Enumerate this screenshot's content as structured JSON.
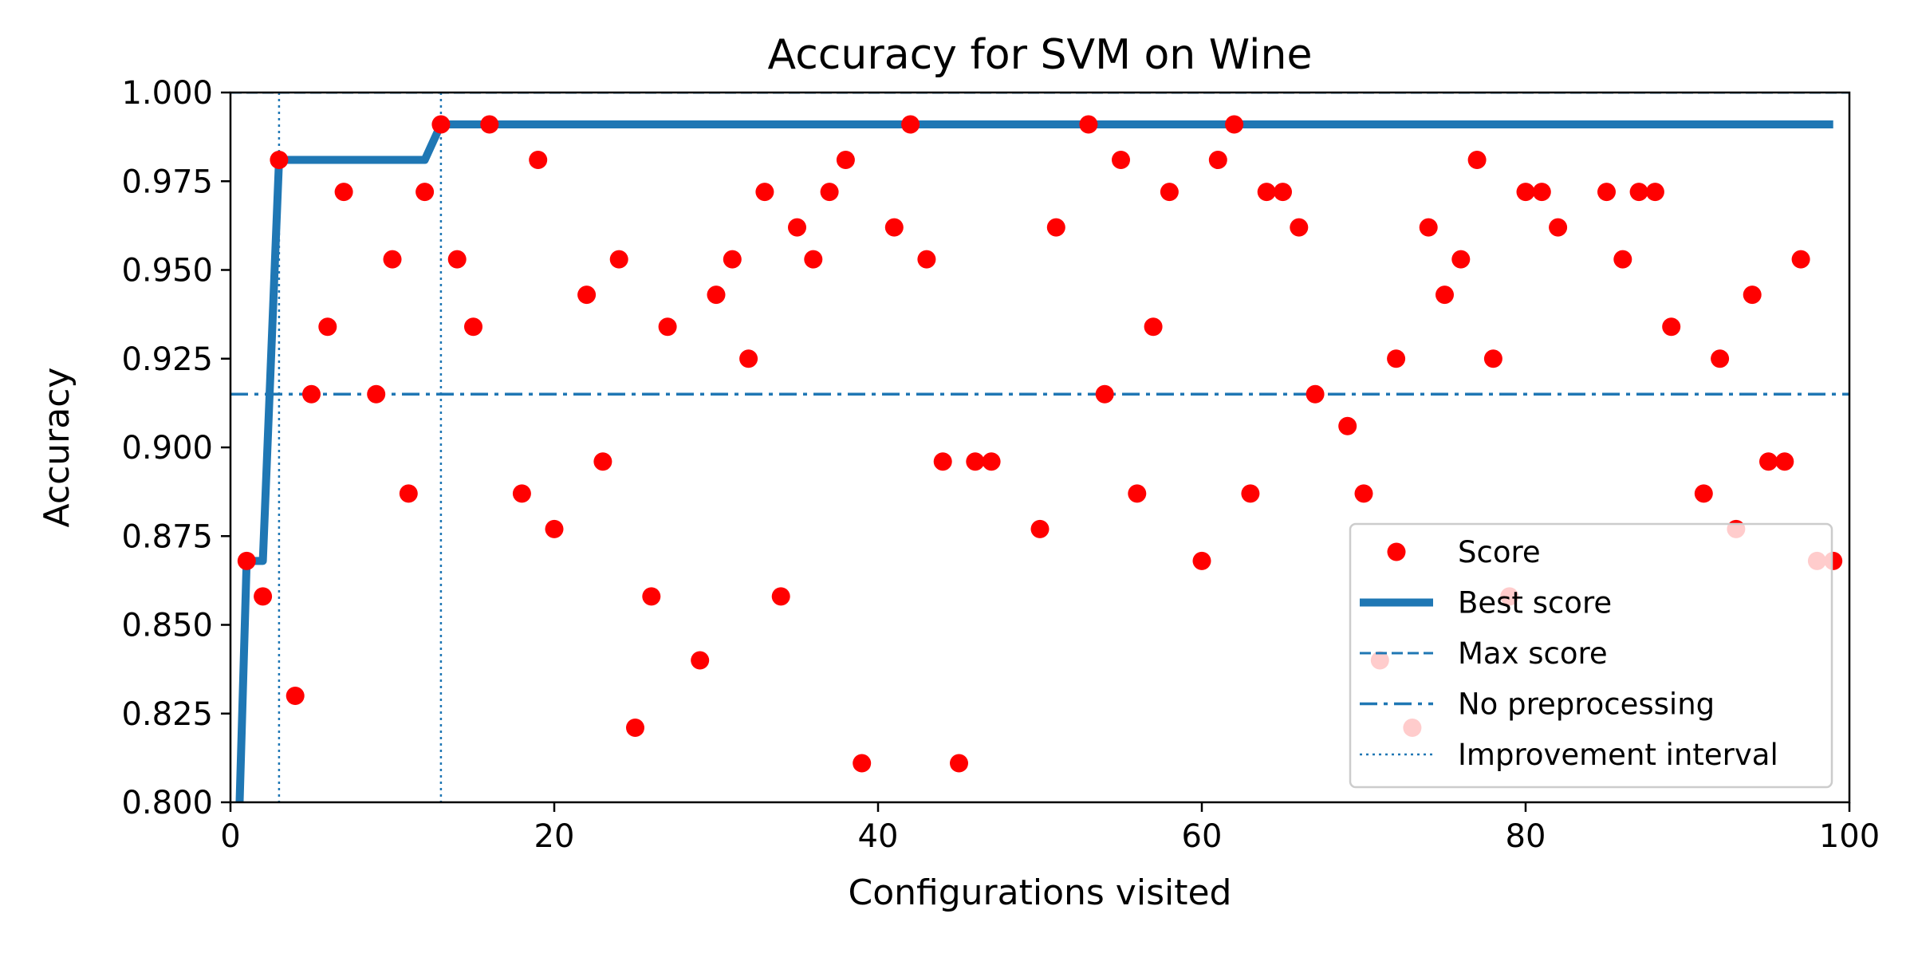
{
  "chart_data": {
    "type": "scatter",
    "title": "Accuracy for SVM on Wine",
    "xlabel": "Configurations visited",
    "ylabel": "Accuracy",
    "xlim": [
      0,
      100
    ],
    "ylim": [
      0.8,
      1.0
    ],
    "x_ticks": [
      0,
      20,
      40,
      60,
      80,
      100
    ],
    "x_tick_labels": [
      "0",
      "20",
      "40",
      "60",
      "80",
      "100"
    ],
    "y_ticks": [
      0.8,
      0.825,
      0.85,
      0.875,
      0.9,
      0.925,
      0.95,
      0.975,
      1.0
    ],
    "y_tick_labels": [
      "0.800",
      "0.825",
      "0.850",
      "0.875",
      "0.900",
      "0.925",
      "0.950",
      "0.975",
      "1.000"
    ],
    "grid": false,
    "legend_position": "lower right",
    "colors": {
      "score": "#ff0000",
      "line": "#1f77b4"
    },
    "score_points": [
      [
        1,
        0.868
      ],
      [
        2,
        0.858
      ],
      [
        3,
        0.981
      ],
      [
        4,
        0.83
      ],
      [
        5,
        0.915
      ],
      [
        6,
        0.934
      ],
      [
        7,
        0.972
      ],
      [
        9,
        0.915
      ],
      [
        10,
        0.953
      ],
      [
        11,
        0.887
      ],
      [
        12,
        0.972
      ],
      [
        13,
        0.991
      ],
      [
        14,
        0.953
      ],
      [
        15,
        0.934
      ],
      [
        16,
        0.991
      ],
      [
        18,
        0.887
      ],
      [
        19,
        0.981
      ],
      [
        20,
        0.877
      ],
      [
        22,
        0.943
      ],
      [
        23,
        0.896
      ],
      [
        24,
        0.953
      ],
      [
        25,
        0.821
      ],
      [
        26,
        0.858
      ],
      [
        27,
        0.934
      ],
      [
        29,
        0.84
      ],
      [
        30,
        0.943
      ],
      [
        31,
        0.953
      ],
      [
        32,
        0.925
      ],
      [
        33,
        0.972
      ],
      [
        34,
        0.858
      ],
      [
        35,
        0.962
      ],
      [
        36,
        0.953
      ],
      [
        37,
        0.972
      ],
      [
        38,
        0.981
      ],
      [
        39,
        0.811
      ],
      [
        41,
        0.962
      ],
      [
        42,
        0.991
      ],
      [
        43,
        0.953
      ],
      [
        44,
        0.896
      ],
      [
        45,
        0.811
      ],
      [
        46,
        0.896
      ],
      [
        47,
        0.896
      ],
      [
        50,
        0.877
      ],
      [
        51,
        0.962
      ],
      [
        53,
        0.991
      ],
      [
        54,
        0.915
      ],
      [
        55,
        0.981
      ],
      [
        56,
        0.887
      ],
      [
        57,
        0.934
      ],
      [
        58,
        0.972
      ],
      [
        60,
        0.868
      ],
      [
        61,
        0.981
      ],
      [
        62,
        0.991
      ],
      [
        63,
        0.887
      ],
      [
        64,
        0.972
      ],
      [
        65,
        0.972
      ],
      [
        66,
        0.962
      ],
      [
        67,
        0.915
      ],
      [
        69,
        0.906
      ],
      [
        70,
        0.887
      ],
      [
        71,
        0.84
      ],
      [
        72,
        0.925
      ],
      [
        73,
        0.821
      ],
      [
        74,
        0.962
      ],
      [
        75,
        0.943
      ],
      [
        76,
        0.953
      ],
      [
        77,
        0.981
      ],
      [
        78,
        0.925
      ],
      [
        79,
        0.858
      ],
      [
        80,
        0.972
      ],
      [
        81,
        0.972
      ],
      [
        82,
        0.962
      ],
      [
        85,
        0.972
      ],
      [
        86,
        0.953
      ],
      [
        87,
        0.972
      ],
      [
        88,
        0.972
      ],
      [
        89,
        0.934
      ],
      [
        91,
        0.887
      ],
      [
        92,
        0.925
      ],
      [
        93,
        0.877
      ],
      [
        94,
        0.943
      ],
      [
        95,
        0.896
      ],
      [
        96,
        0.896
      ],
      [
        97,
        0.953
      ],
      [
        98,
        0.868
      ],
      [
        99,
        0.868
      ]
    ],
    "best_score_line": [
      [
        0.5,
        0.79
      ],
      [
        1,
        0.868
      ],
      [
        2,
        0.868
      ],
      [
        3,
        0.981
      ],
      [
        12,
        0.981
      ],
      [
        13,
        0.991
      ],
      [
        99,
        0.991
      ]
    ],
    "max_score": 1.0,
    "no_preprocessing": 0.915,
    "improvement_intervals": [
      3,
      13
    ],
    "legend": [
      {
        "label": "Score",
        "kind": "marker"
      },
      {
        "label": "Best score",
        "kind": "solid"
      },
      {
        "label": "Max score",
        "kind": "dashed"
      },
      {
        "label": "No preprocessing",
        "kind": "dashdot"
      },
      {
        "label": "Improvement interval",
        "kind": "dotted"
      }
    ]
  }
}
